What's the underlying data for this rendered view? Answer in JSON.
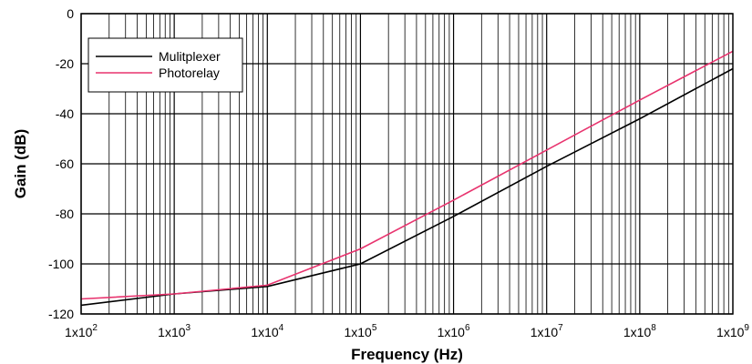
{
  "chart_data": {
    "type": "line",
    "title": "",
    "xlabel": "Frequency (Hz)",
    "ylabel": "Gain (dB)",
    "x_scale": "log",
    "xlim": [
      100,
      1000000000
    ],
    "ylim": [
      -120,
      0
    ],
    "grid": true,
    "legend": "top-left",
    "x_ticks": [
      {
        "value": 100,
        "mantissa": "1x10",
        "exp": "2"
      },
      {
        "value": 1000,
        "mantissa": "1x10",
        "exp": "3"
      },
      {
        "value": 10000,
        "mantissa": "1x10",
        "exp": "4"
      },
      {
        "value": 100000,
        "mantissa": "1x10",
        "exp": "5"
      },
      {
        "value": 1000000,
        "mantissa": "1x10",
        "exp": "6"
      },
      {
        "value": 10000000,
        "mantissa": "1x10",
        "exp": "7"
      },
      {
        "value": 100000000,
        "mantissa": "1x10",
        "exp": "8"
      },
      {
        "value": 1000000000,
        "mantissa": "1x10",
        "exp": "9"
      }
    ],
    "y_ticks": [
      0,
      -20,
      -40,
      -60,
      -80,
      -100,
      -120
    ],
    "series": [
      {
        "name": "Mulitplexer",
        "color": "#000000",
        "points": [
          [
            100,
            -116.5
          ],
          [
            1000,
            -112
          ],
          [
            10000,
            -109
          ],
          [
            100000,
            -100
          ],
          [
            1000000,
            -81
          ],
          [
            10000000,
            -61
          ],
          [
            100000000,
            -42
          ],
          [
            1000000000,
            -22
          ]
        ]
      },
      {
        "name": "Photorelay",
        "color": "#e8336e",
        "points": [
          [
            100,
            -114
          ],
          [
            1000,
            -112
          ],
          [
            10000,
            -108.5
          ],
          [
            100000,
            -94
          ],
          [
            1000000,
            -74.5
          ],
          [
            10000000,
            -54.5
          ],
          [
            100000000,
            -34.5
          ],
          [
            1000000000,
            -15
          ]
        ]
      }
    ]
  }
}
